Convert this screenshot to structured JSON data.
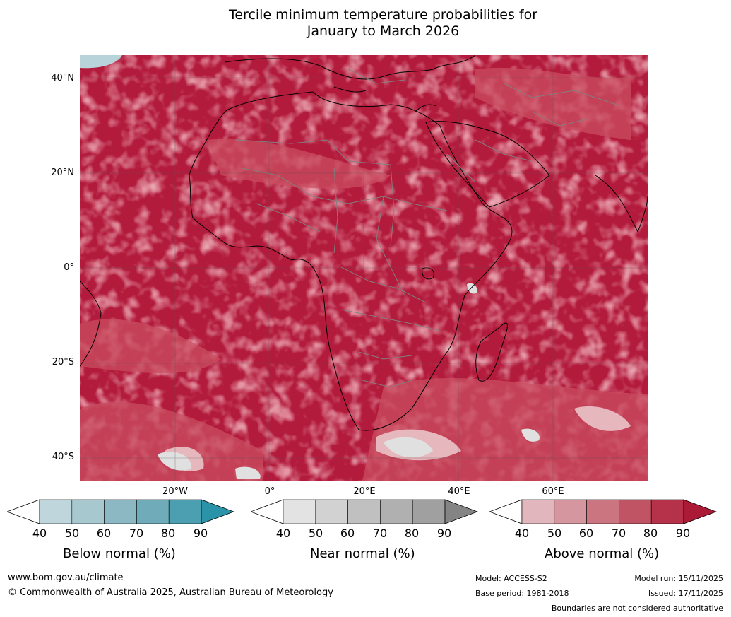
{
  "title": {
    "line1": "Tercile minimum temperature probabilities for",
    "line2": "January to March 2026"
  },
  "map": {
    "region": "Africa",
    "lat_labels": [
      "40°N",
      "20°N",
      "0°",
      "20°S",
      "40°S"
    ],
    "lon_labels": [
      "20°W",
      "0°",
      "20°E",
      "40°E",
      "60°E"
    ],
    "colors": {
      "ocean_dominant": "#b31b3c",
      "mid_red": "#c94d60",
      "light_red": "#d98790",
      "pale": "#e6b8bd",
      "near_normal_light": "#e0e0e0",
      "below_normal_light": "#b9d3da",
      "coastline": "#000000",
      "border": "#808080",
      "grid": "#666666"
    }
  },
  "legends": [
    {
      "caption": "Below normal (%)",
      "ticks": [
        "40",
        "50",
        "60",
        "70",
        "80",
        "90"
      ],
      "colors": [
        "#ffffff",
        "#bfd6dd",
        "#a7c8cf",
        "#8cb8c3",
        "#6fabb8",
        "#4b9fb0",
        "#2a93a8"
      ]
    },
    {
      "caption": "Near normal (%)",
      "ticks": [
        "40",
        "50",
        "60",
        "70",
        "80",
        "90"
      ],
      "colors": [
        "#ffffff",
        "#e3e3e3",
        "#d2d2d2",
        "#c0c0c0",
        "#b0b0b0",
        "#a0a0a0",
        "#848484"
      ]
    },
    {
      "caption": "Above normal (%)",
      "ticks": [
        "40",
        "50",
        "60",
        "70",
        "80",
        "90"
      ],
      "colors": [
        "#ffffff",
        "#e2b6bd",
        "#d5969f",
        "#cb7580",
        "#c05465",
        "#b5324a",
        "#ab1a36"
      ]
    }
  ],
  "footer": {
    "website": "www.bom.gov.au/climate",
    "copyright": "© Commonwealth of Australia 2025, Australian Bureau of Meteorology",
    "model": "Model: ACCESS-S2",
    "base_period": "Base period: 1981-2018",
    "model_run": "Model run: 15/11/2025",
    "issued": "Issued: 17/11/2025",
    "disclaimer": "Boundaries are not considered authoritative"
  }
}
